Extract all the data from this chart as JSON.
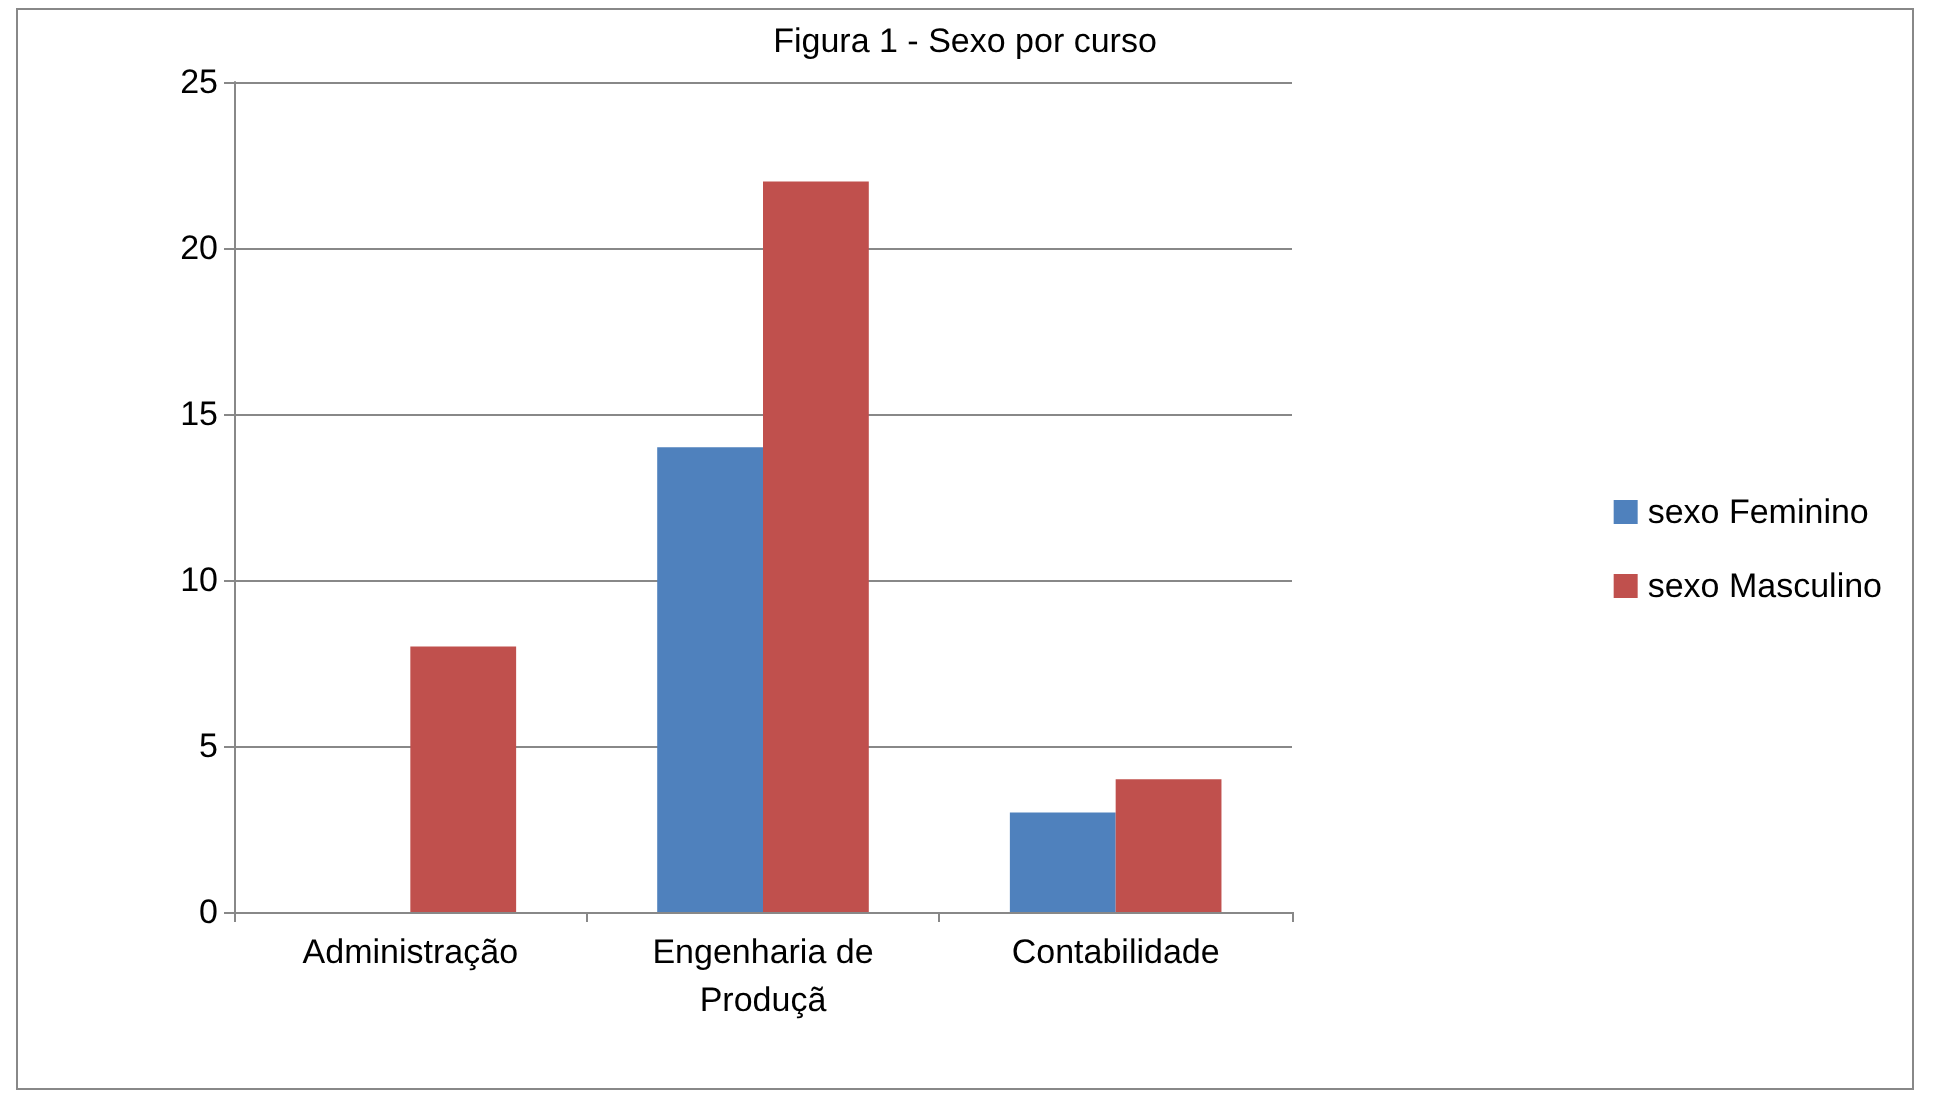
{
  "chart_data": {
    "type": "bar",
    "title": "Figura 1 - Sexo por curso",
    "categories": [
      "Administração",
      "Engenharia de Produçã",
      "Contabilidade"
    ],
    "series": [
      {
        "name": "sexo Feminino",
        "color": "#4f81bd",
        "values": [
          null,
          14,
          3
        ]
      },
      {
        "name": "sexo Masculino",
        "color": "#c0504d",
        "values": [
          8,
          22,
          4
        ]
      }
    ],
    "ylim": [
      0,
      25
    ],
    "yticks": [
      0,
      5,
      10,
      15,
      20,
      25
    ],
    "grid": "y",
    "legend": "right"
  }
}
